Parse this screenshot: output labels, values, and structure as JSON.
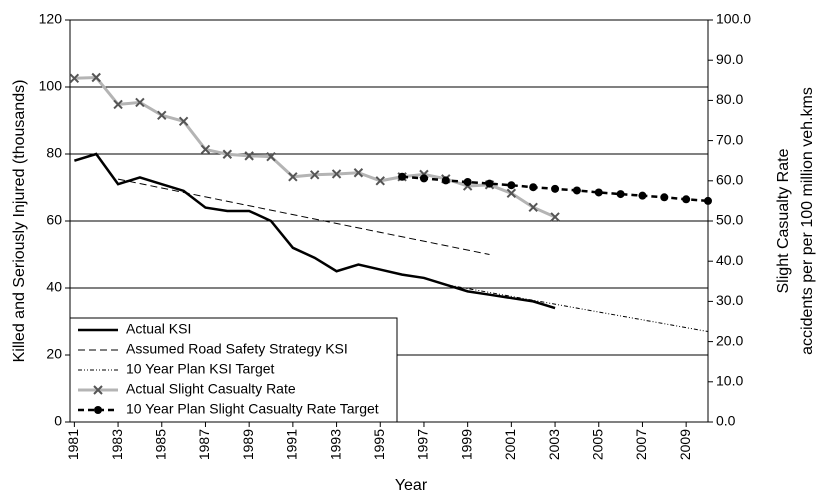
{
  "chart_data": {
    "type": "line",
    "x_label": "Year",
    "y_label": "Killed and Seriously Injured (thousands)",
    "y2_label": [
      "Slight Casualty Rate",
      "accidents per per 100 million veh.kms"
    ],
    "xlim": [
      1980.8,
      2010
    ],
    "xticks": [
      1981,
      1983,
      1985,
      1987,
      1989,
      1991,
      1993,
      1995,
      1997,
      1999,
      2001,
      2003,
      2005,
      2007,
      2009
    ],
    "ylim": [
      0,
      120
    ],
    "yticks": [
      0,
      20,
      40,
      60,
      80,
      100,
      120
    ],
    "y2lim": [
      0,
      100
    ],
    "y2ticks": [
      {
        "value": 0,
        "label": "0.0"
      },
      {
        "value": 10,
        "label": "10.0"
      },
      {
        "value": 20,
        "label": "20.0"
      },
      {
        "value": 30,
        "label": "30.0"
      },
      {
        "value": 40,
        "label": "40.0"
      },
      {
        "value": 50,
        "label": "50.0"
      },
      {
        "value": 60,
        "label": "60.0"
      },
      {
        "value": 70,
        "label": "70.0"
      },
      {
        "value": 80,
        "label": "80.0"
      },
      {
        "value": 90,
        "label": "90.0"
      },
      {
        "value": 100,
        "label": "100.0"
      }
    ],
    "grid": true,
    "legend": "lower left",
    "series": [
      {
        "name": "Actual KSI",
        "color": "#000000",
        "dash": "none",
        "width": 2.5,
        "marker": "none",
        "axis": "y",
        "x": [
          1981,
          1982,
          1983,
          1984,
          1985,
          1986,
          1987,
          1988,
          1989,
          1990,
          1991,
          1992,
          1993,
          1994,
          1995,
          1996,
          1997,
          1998,
          1999,
          2000,
          2001,
          2002,
          2003
        ],
        "values": [
          78,
          80,
          71,
          73,
          71,
          69,
          64,
          63,
          63,
          60,
          52,
          49,
          45,
          47,
          45.5,
          44,
          43,
          41,
          39,
          38,
          37,
          36,
          34
        ]
      },
      {
        "name": "Assumed Road Safety Strategy KSI",
        "color": "#000000",
        "dash": "7,4",
        "width": 1,
        "marker": "none",
        "axis": "y",
        "x": [
          1983,
          2000
        ],
        "values": [
          72.5,
          50
        ]
      },
      {
        "name": "10 Year Plan KSI Target",
        "color": "#000000",
        "dash": "4,2,1,2,1,2",
        "width": 1,
        "marker": "none",
        "axis": "y",
        "x": [
          1998,
          2010
        ],
        "values": [
          41,
          27
        ]
      },
      {
        "name": "Actual Slight Casualty Rate",
        "color": "#b4b4b4",
        "dash": "none",
        "width": 3,
        "marker": "x",
        "axis": "y2",
        "x": [
          1981,
          1982,
          1983,
          1984,
          1985,
          1986,
          1987,
          1988,
          1989,
          1990,
          1991,
          1992,
          1993,
          1994,
          1995,
          1996,
          1997,
          1998,
          1999,
          2000,
          2001,
          2002,
          2003
        ],
        "values": [
          85.5,
          85.7,
          79,
          79.5,
          76.3,
          74.8,
          67.8,
          66.6,
          66.2,
          66,
          61,
          61.5,
          61.7,
          62,
          60,
          61,
          61.6,
          60.5,
          58.7,
          59,
          56.9,
          53.4,
          51
        ]
      },
      {
        "name": "10 Year Plan Slight Casualty Rate Target",
        "color": "#000000",
        "dash": "6,4",
        "width": 2.5,
        "marker": "circle",
        "axis": "y2",
        "x": [
          1996,
          1997,
          1998,
          1999,
          2000,
          2001,
          2002,
          2003,
          2004,
          2005,
          2006,
          2007,
          2008,
          2009,
          2010
        ],
        "values": [
          61,
          60.6,
          60.1,
          59.7,
          59.3,
          58.9,
          58.4,
          58,
          57.6,
          57.1,
          56.7,
          56.3,
          55.9,
          55.4,
          55
        ]
      }
    ]
  }
}
